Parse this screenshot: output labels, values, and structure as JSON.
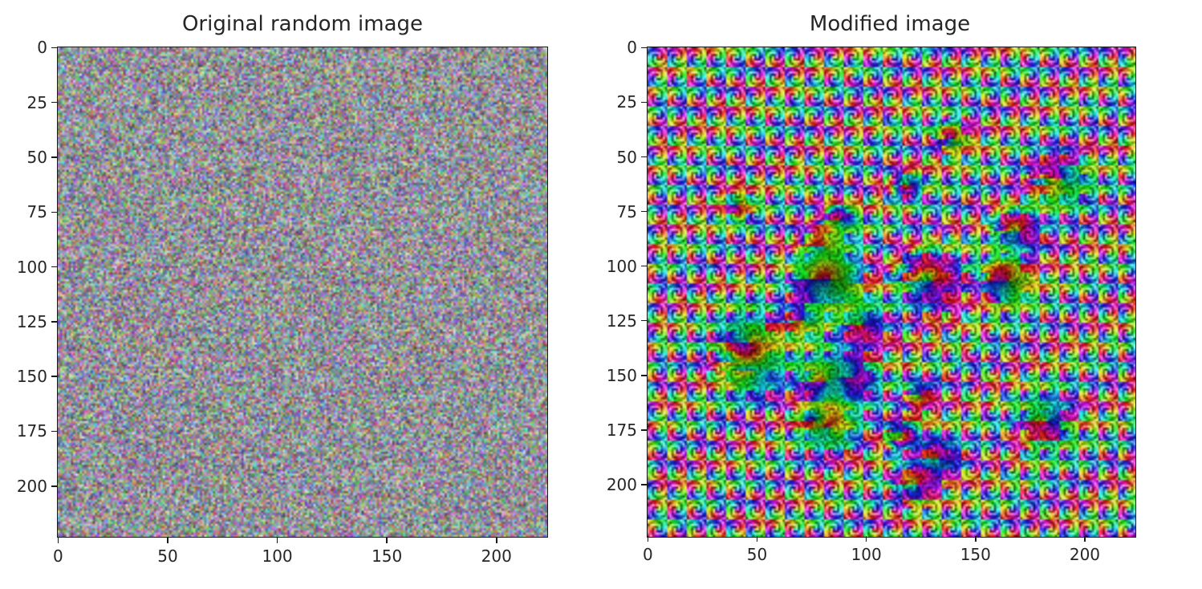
{
  "figure": {
    "panels": [
      {
        "id": "original",
        "title": "Original random image",
        "xticks": [
          "0",
          "50",
          "100",
          "150",
          "200"
        ],
        "yticks": [
          "0",
          "25",
          "50",
          "75",
          "100",
          "125",
          "150",
          "175",
          "200"
        ],
        "image_size": [
          224,
          224
        ],
        "content": "uniform random RGB noise"
      },
      {
        "id": "modified",
        "title": "Modified image",
        "xticks": [
          "0",
          "50",
          "100",
          "150",
          "200"
        ],
        "yticks": [
          "0",
          "25",
          "50",
          "75",
          "100",
          "125",
          "150",
          "175",
          "200"
        ],
        "image_size": [
          224,
          224
        ],
        "content": "high-saturation swirling colour pattern with structured features"
      }
    ]
  }
}
